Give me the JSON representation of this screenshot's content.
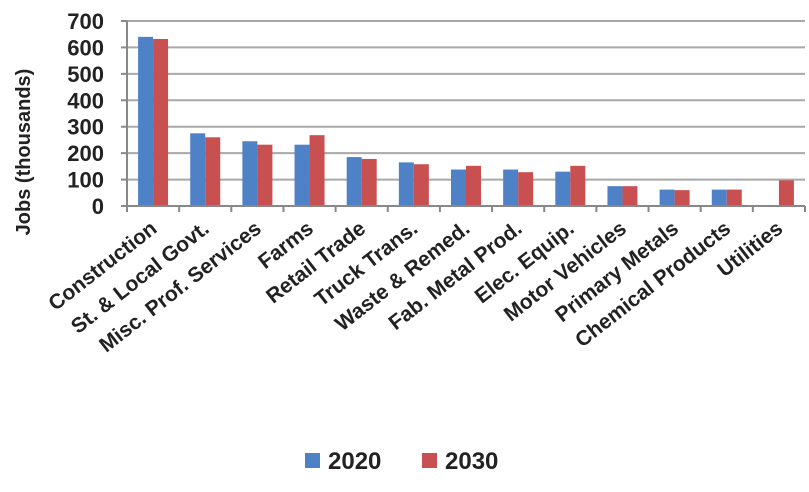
{
  "chart_data": {
    "type": "bar",
    "ylabel": "Jobs (thousands)",
    "xlabel": "",
    "ylim": [
      0,
      700
    ],
    "yticks": [
      0,
      100,
      200,
      300,
      400,
      500,
      600,
      700
    ],
    "grid": true,
    "legend_position": "bottom",
    "categories": [
      "Construction",
      "St. & Local Govt.",
      "Misc. Prof. Services",
      "Farms",
      "Retail Trade",
      "Truck Trans.",
      "Waste & Remed.",
      "Fab. Metal Prod.",
      "Elec. Equip.",
      "Motor Vehicles",
      "Primary Metals",
      "Chemical Products",
      "Utilities"
    ],
    "series": [
      {
        "name": "2020",
        "color": "#4f81c7",
        "values": [
          640,
          275,
          245,
          232,
          185,
          165,
          138,
          138,
          130,
          75,
          62,
          62,
          0
        ]
      },
      {
        "name": "2030",
        "color": "#c85050",
        "values": [
          632,
          260,
          232,
          268,
          178,
          158,
          152,
          128,
          152,
          75,
          60,
          62,
          97
        ]
      }
    ]
  }
}
